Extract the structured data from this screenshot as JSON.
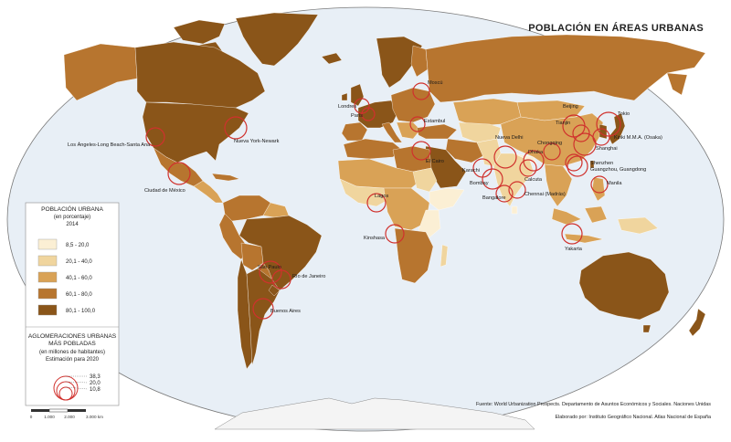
{
  "title": "POBLACIÓN EN ÁREAS URBANAS",
  "colors": {
    "ocean": "#e8eff6",
    "background": "#ffffff",
    "circle": "#d0312d",
    "class_1": "#fbefd4",
    "class_2": "#f0d59e",
    "class_3": "#d9a256",
    "class_4": "#b7752f",
    "class_5": "#8a5519",
    "antarctica": "#f4f4f4"
  },
  "legend_population": {
    "title": "POBLACIÓN URBANA",
    "subtitle": "(en porcentaje)",
    "year": "2014",
    "classes": [
      {
        "label": "8,5 - 20,0",
        "color": "#fbefd4"
      },
      {
        "label": "20,1 - 40,0",
        "color": "#f0d59e"
      },
      {
        "label": "40,1 - 60,0",
        "color": "#d9a256"
      },
      {
        "label": "60,1 - 80,0",
        "color": "#b7752f"
      },
      {
        "label": "80,1 - 100,0",
        "color": "#8a5519"
      }
    ]
  },
  "legend_agglomerations": {
    "title_line1": "AGLOMERACIONES URBANAS",
    "title_line2": "MÁS POBLADAS",
    "subtitle": "(en millones de habitantes)",
    "note": "Estimación para 2020",
    "values": [
      "38,3",
      "20,0",
      "10,8"
    ]
  },
  "cities": [
    {
      "name": "Moscú"
    },
    {
      "name": "Londres"
    },
    {
      "name": "París"
    },
    {
      "name": "Estambul"
    },
    {
      "name": "El Cairo"
    },
    {
      "name": "Karachi"
    },
    {
      "name": "Nueva Delhi"
    },
    {
      "name": "Bombay"
    },
    {
      "name": "Bangalore"
    },
    {
      "name": "Dhaka"
    },
    {
      "name": "Calcuta"
    },
    {
      "name": "Chennai (Madrás)"
    },
    {
      "name": "Chongqing"
    },
    {
      "name": "Beijing"
    },
    {
      "name": "Tianjin"
    },
    {
      "name": "Tokio"
    },
    {
      "name": "Kinki M.M.A. (Osaka)"
    },
    {
      "name": "Shanghai"
    },
    {
      "name": "Shenzhen"
    },
    {
      "name": "Guangzhou, Guangdong"
    },
    {
      "name": "Manila"
    },
    {
      "name": "Yakarta"
    },
    {
      "name": "Lagos"
    },
    {
      "name": "Kinshasa"
    },
    {
      "name": "Nueva York-Newark"
    },
    {
      "name": "Los Ángeles-Long Beach-Santa Ana"
    },
    {
      "name": "Ciudad de México"
    },
    {
      "name": "São Paulo"
    },
    {
      "name": "Río de Janeiro"
    },
    {
      "name": "Buenos Aires"
    }
  ],
  "scale": {
    "labels": [
      "0",
      "1.000",
      "2.000",
      "3.000 km"
    ]
  },
  "source": "Fuente: World Urbanization Prospects. Departamento de Asuntos Económicos y Sociales. Naciones Unidas",
  "credit": "Elaborado por: Instituto Geográfico Nacional. Atlas Nacional de España"
}
